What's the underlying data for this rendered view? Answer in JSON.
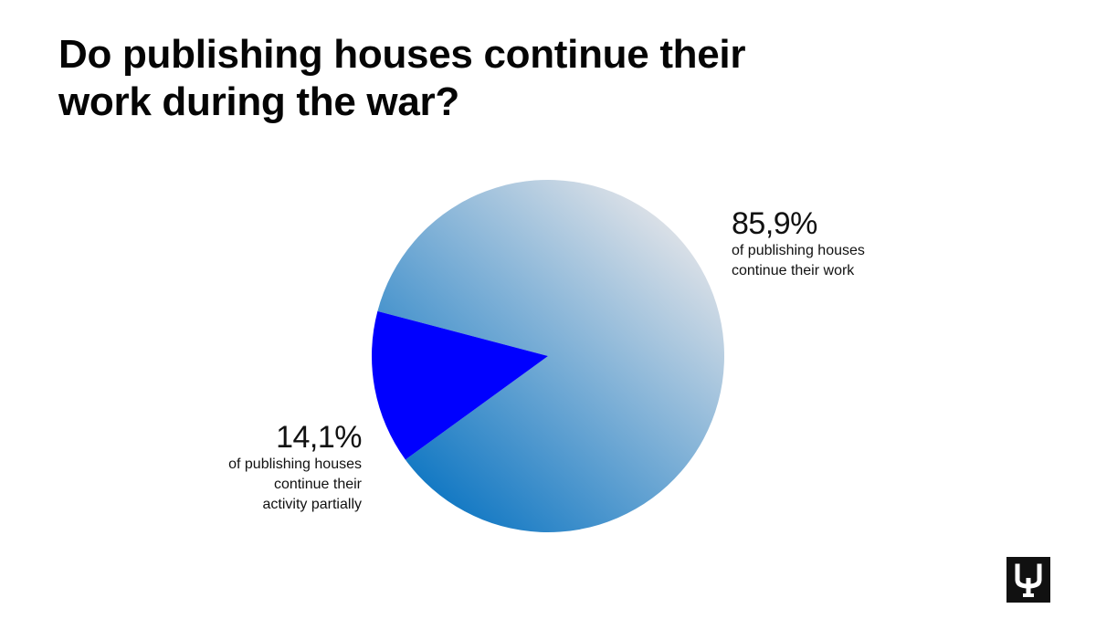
{
  "title": "Do publishing houses continue their work during the war?",
  "chart_data": {
    "type": "pie",
    "title": "Do publishing houses continue their work during the war?",
    "slices": [
      {
        "value": 85.9,
        "percent_label": "85,9%",
        "lines": [
          "of publishing houses",
          "continue their work"
        ],
        "color_start": "#e6e6e9",
        "color_end": "#0a74c2"
      },
      {
        "value": 14.1,
        "percent_label": "14,1%",
        "lines": [
          "of publishing houses",
          "continue their",
          "activity partially"
        ],
        "color": "#0000ff"
      }
    ],
    "legend": "none",
    "grid": false
  },
  "logo": {
    "icon": "publisher-logo-icon",
    "color": "#111111"
  }
}
